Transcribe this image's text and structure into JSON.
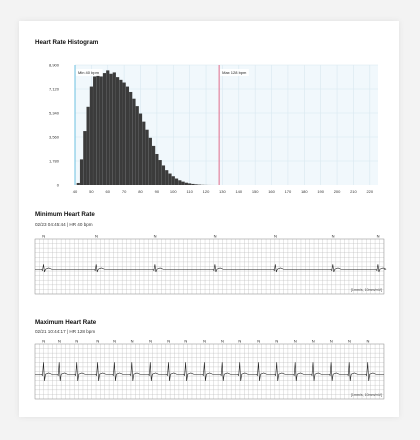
{
  "chart_data": [
    {
      "type": "bar",
      "title": "Heart Rate Histogram",
      "x_ticks": [
        "40",
        "50",
        "60",
        "70",
        "80",
        "90",
        "100",
        "110",
        "120",
        "130",
        "140",
        "150",
        "160",
        "170",
        "180",
        "190",
        "200",
        "210",
        "220"
      ],
      "y_ticks": [
        "0",
        "1,780",
        "3,560",
        "5,340",
        "7,120",
        "8,900"
      ],
      "xlim": [
        40,
        225
      ],
      "ylim": [
        0,
        8900
      ],
      "grid": true,
      "bins": [
        {
          "x": 42,
          "value": 150
        },
        {
          "x": 44,
          "value": 1900
        },
        {
          "x": 46,
          "value": 4000
        },
        {
          "x": 48,
          "value": 5800
        },
        {
          "x": 50,
          "value": 7300
        },
        {
          "x": 52,
          "value": 8050
        },
        {
          "x": 54,
          "value": 8200
        },
        {
          "x": 56,
          "value": 8050
        },
        {
          "x": 58,
          "value": 8300
        },
        {
          "x": 60,
          "value": 8500
        },
        {
          "x": 62,
          "value": 8250
        },
        {
          "x": 64,
          "value": 8350
        },
        {
          "x": 66,
          "value": 8000
        },
        {
          "x": 68,
          "value": 7800
        },
        {
          "x": 70,
          "value": 7600
        },
        {
          "x": 72,
          "value": 7300
        },
        {
          "x": 74,
          "value": 6900
        },
        {
          "x": 76,
          "value": 6400
        },
        {
          "x": 78,
          "value": 5850
        },
        {
          "x": 80,
          "value": 5300
        },
        {
          "x": 82,
          "value": 4700
        },
        {
          "x": 84,
          "value": 4100
        },
        {
          "x": 86,
          "value": 3500
        },
        {
          "x": 88,
          "value": 2900
        },
        {
          "x": 90,
          "value": 2300
        },
        {
          "x": 92,
          "value": 1850
        },
        {
          "x": 94,
          "value": 1450
        },
        {
          "x": 96,
          "value": 1100
        },
        {
          "x": 98,
          "value": 850
        },
        {
          "x": 100,
          "value": 650
        },
        {
          "x": 102,
          "value": 480
        },
        {
          "x": 104,
          "value": 350
        },
        {
          "x": 106,
          "value": 250
        },
        {
          "x": 108,
          "value": 170
        },
        {
          "x": 110,
          "value": 120
        },
        {
          "x": 112,
          "value": 80
        },
        {
          "x": 114,
          "value": 50
        },
        {
          "x": 116,
          "value": 30
        },
        {
          "x": 118,
          "value": 15
        },
        {
          "x": 120,
          "value": 8
        },
        {
          "x": 122,
          "value": 4
        },
        {
          "x": 124,
          "value": 2
        },
        {
          "x": 126,
          "value": 1
        }
      ],
      "markers": [
        {
          "name": "min",
          "x": 40,
          "label": "Min 40 bpm",
          "color": "#6cc0e0"
        },
        {
          "name": "max",
          "x": 128,
          "label": "Max 128 bpm",
          "color": "#e06c8c"
        }
      ],
      "colors": {
        "bar": "#3b3b3b",
        "plot_bg": "#f1f8fc",
        "grid": "#d8e8f0"
      }
    },
    {
      "type": "line",
      "title": "Minimum Heart Rate",
      "subtitle": "02/23 04:45:44  |  HR  40 bpm",
      "beat_label": "N",
      "beats": [
        0.025,
        0.176,
        0.344,
        0.516,
        0.689,
        0.854,
        0.983
      ],
      "scale_label": "[1mm/s, 10mm/mV]",
      "colors": {
        "grid": "#bcbcbc",
        "trace": "#222222"
      }
    },
    {
      "type": "line",
      "title": "Maximum Heart Rate",
      "subtitle": "02/21 10:44:17  |  HR  128 bpm",
      "beat_label": "N",
      "beats": [
        0.025,
        0.07,
        0.12,
        0.18,
        0.228,
        0.278,
        0.331,
        0.383,
        0.432,
        0.486,
        0.537,
        0.587,
        0.641,
        0.693,
        0.746,
        0.797,
        0.849,
        0.901,
        0.954
      ],
      "scale_label": "[1mm/s, 10mm/mV]",
      "colors": {
        "grid": "#bcbcbc",
        "trace": "#222222"
      }
    }
  ]
}
